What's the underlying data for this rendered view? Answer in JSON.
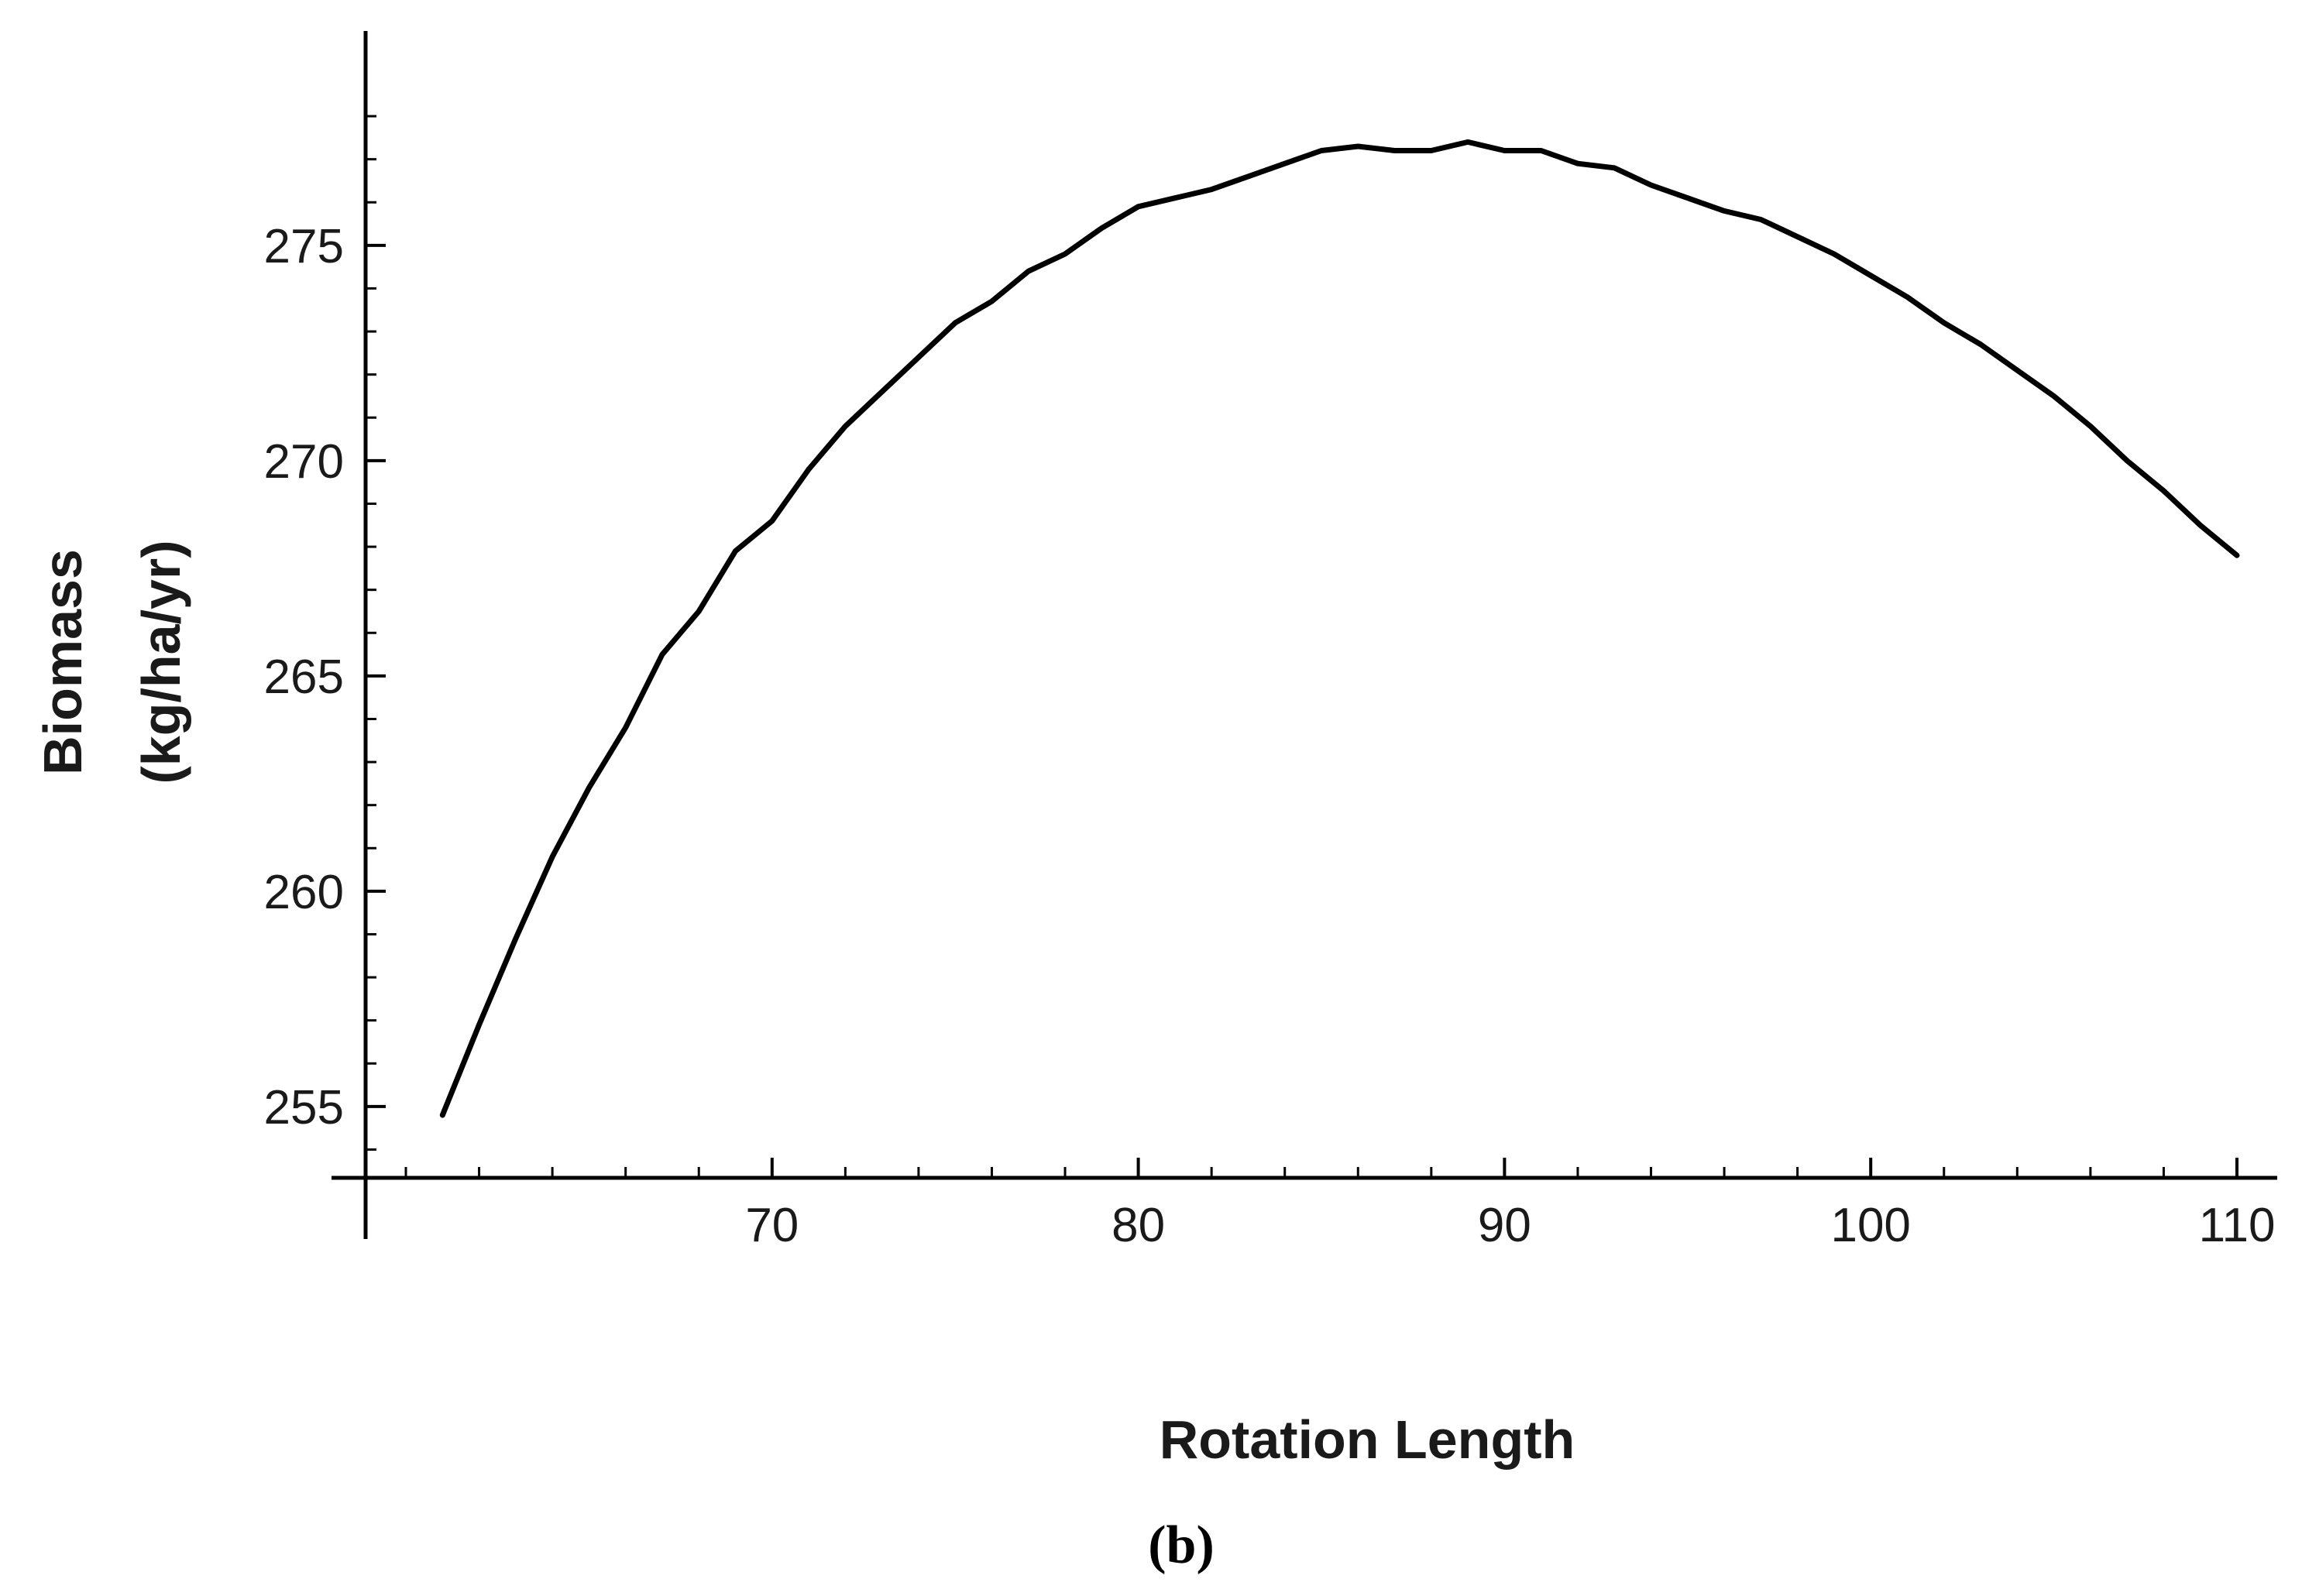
{
  "chart_data": {
    "type": "line",
    "title": "",
    "xlabel": "Rotation Length",
    "ylabel_lines": [
      "Biomass",
      "(kg/ha/yr)"
    ],
    "panel_label": "(b)",
    "xlim": [
      60,
      110
    ],
    "ylim": [
      254.8,
      278.9
    ],
    "x_axis_crosses_y_at": 253.6,
    "x_ticks": [
      70,
      80,
      90,
      100,
      110
    ],
    "x_tick_labels": [
      "70",
      "80",
      "90",
      "100",
      "110"
    ],
    "y_ticks": [
      255,
      260,
      265,
      270,
      275
    ],
    "y_tick_labels": [
      "255",
      "260",
      "265",
      "270",
      "275"
    ],
    "x_minor_step": 2,
    "y_minor_step": 1,
    "grid": false,
    "legend": "none",
    "line_color": "#000000",
    "series": [
      {
        "x": [
          61,
          62,
          63,
          64,
          65,
          66,
          67,
          68,
          69,
          70,
          71,
          72,
          73,
          74,
          75,
          76,
          77,
          78,
          79,
          80,
          81,
          82,
          83,
          84,
          85,
          86,
          87,
          88,
          89,
          90,
          91,
          92,
          93,
          94,
          95,
          96,
          97,
          98,
          99,
          100,
          101,
          102,
          103,
          104,
          105,
          106,
          107,
          108,
          109,
          110
        ],
        "y": [
          254.8,
          256.9,
          258.9,
          260.8,
          262.4,
          263.8,
          265.5,
          266.5,
          267.9,
          268.6,
          269.8,
          270.8,
          271.6,
          272.4,
          273.2,
          273.7,
          274.4,
          274.8,
          275.4,
          275.9,
          276.1,
          276.3,
          276.6,
          276.9,
          277.2,
          277.3,
          277.2,
          277.2,
          277.4,
          277.2,
          277.2,
          276.9,
          276.8,
          276.4,
          276.1,
          275.8,
          275.6,
          275.2,
          274.8,
          274.3,
          273.8,
          273.2,
          272.7,
          272.1,
          271.5,
          270.8,
          270.0,
          269.3,
          268.5,
          267.8
        ]
      }
    ]
  }
}
